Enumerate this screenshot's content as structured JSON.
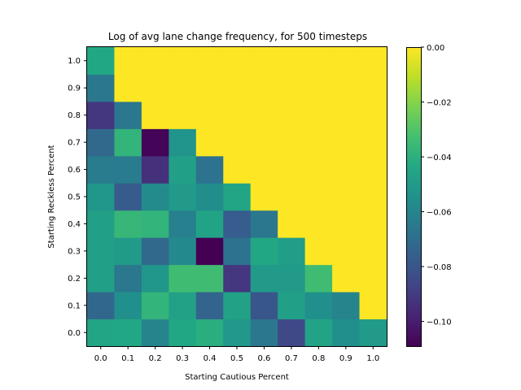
{
  "chart_data": {
    "type": "heatmap",
    "title": "Log of avg lane change frequency, for 500 timesteps",
    "xlabel": "Starting Cautious Percent",
    "ylabel": "Starting Reckless Percent",
    "x_categories": [
      "0.0",
      "0.1",
      "0.2",
      "0.3",
      "0.4",
      "0.5",
      "0.6",
      "0.7",
      "0.8",
      "0.9",
      "1.0"
    ],
    "y_categories": [
      "0.0",
      "0.1",
      "0.2",
      "0.3",
      "0.4",
      "0.5",
      "0.6",
      "0.7",
      "0.8",
      "0.9",
      "1.0"
    ],
    "values": [
      [
        -0.045,
        -0.044,
        -0.06,
        -0.044,
        -0.041,
        -0.051,
        -0.066,
        -0.085,
        -0.046,
        -0.055,
        -0.05
      ],
      [
        -0.073,
        -0.055,
        -0.038,
        -0.047,
        -0.074,
        -0.047,
        -0.08,
        -0.048,
        -0.055,
        -0.06,
        0.0
      ],
      [
        -0.048,
        -0.066,
        -0.052,
        -0.034,
        -0.034,
        -0.092,
        -0.05,
        -0.05,
        -0.034,
        0.0,
        0.0
      ],
      [
        -0.048,
        -0.05,
        -0.072,
        -0.058,
        -0.109,
        -0.068,
        -0.044,
        -0.049,
        0.0,
        0.0,
        0.0
      ],
      [
        -0.048,
        -0.037,
        -0.038,
        -0.062,
        -0.046,
        -0.077,
        -0.066,
        0.0,
        0.0,
        0.0,
        0.0
      ],
      [
        -0.052,
        -0.078,
        -0.057,
        -0.05,
        -0.056,
        -0.045,
        0.0,
        0.0,
        0.0,
        0.0,
        0.0
      ],
      [
        -0.064,
        -0.064,
        -0.094,
        -0.048,
        -0.068,
        0.0,
        0.0,
        0.0,
        0.0,
        0.0,
        0.0
      ],
      [
        -0.072,
        -0.038,
        -0.108,
        -0.053,
        0.0,
        0.0,
        0.0,
        0.0,
        0.0,
        0.0,
        0.0
      ],
      [
        -0.092,
        -0.066,
        0.0,
        0.0,
        0.0,
        0.0,
        0.0,
        0.0,
        0.0,
        0.0,
        0.0
      ],
      [
        -0.066,
        0.0,
        0.0,
        0.0,
        0.0,
        0.0,
        0.0,
        0.0,
        0.0,
        0.0,
        0.0
      ],
      [
        -0.044,
        0.0,
        0.0,
        0.0,
        0.0,
        0.0,
        0.0,
        0.0,
        0.0,
        0.0,
        0.0
      ]
    ],
    "colormap": "viridis",
    "vmin": -0.109,
    "vmax": 0.0,
    "colorbar_ticks": [
      "0.00",
      "−0.02",
      "−0.04",
      "−0.06",
      "−0.08",
      "−0.10"
    ],
    "colorbar_tick_values": [
      0.0,
      -0.02,
      -0.04,
      -0.06,
      -0.08,
      -0.1
    ],
    "y_origin": "bottom"
  }
}
